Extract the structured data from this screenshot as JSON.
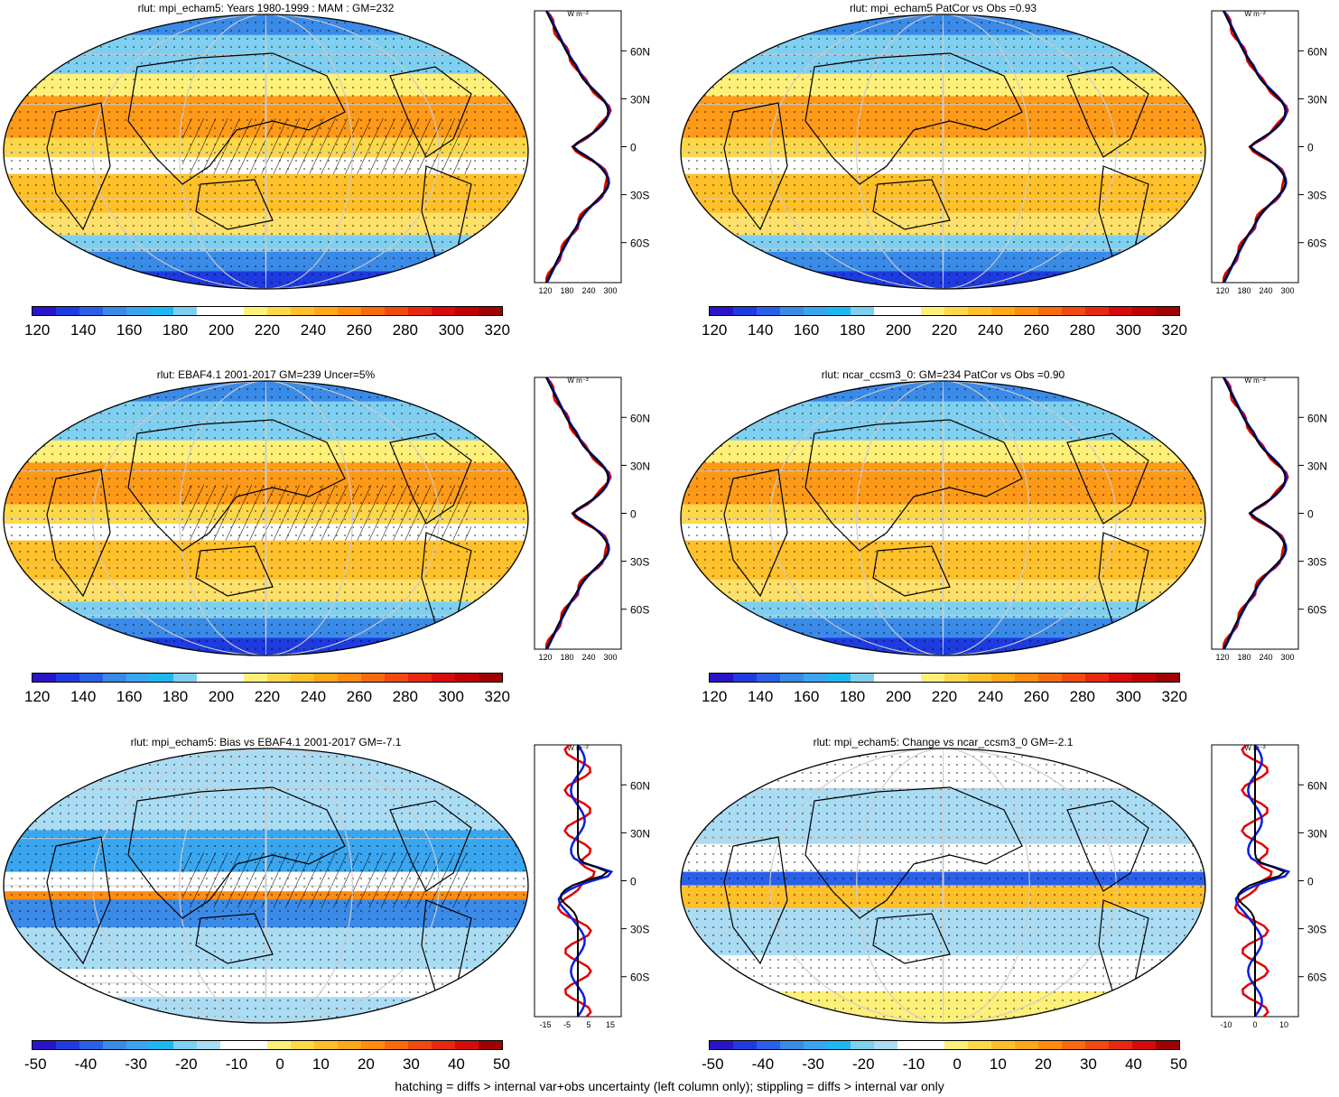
{
  "titles": [
    "rlut: mpi_echam5: Years 1980-1999 : MAM : GM=232",
    "rlut: mpi_echam5 PatCor vs Obs =0.93",
    "rlut: EBAF4.1 2001-2017 GM=239 Uncer=5%",
    "rlut: ncar_ccsm3_0: GM=234 PatCor vs Obs =0.90",
    "rlut: mpi_echam5: Bias vs EBAF4.1 2001-2017 GM=-7.1",
    "rlut: mpi_echam5: Change vs ncar_ccsm3_0 GM=-2.1"
  ],
  "colorbar_abs": {
    "labels": [
      "120",
      "140",
      "160",
      "180",
      "200",
      "220",
      "240",
      "260",
      "280",
      "300",
      "320"
    ],
    "colors": [
      "#2a14c8",
      "#1e3be0",
      "#2a5fe8",
      "#3a8ae8",
      "#3aa6f0",
      "#1eb8f0",
      "#7fcff0",
      "#ffffff",
      "#ffffff",
      "#fff07a",
      "#ffd84a",
      "#ffc02a",
      "#ffa818",
      "#ff8c10",
      "#f86a10",
      "#f04a10",
      "#e82810",
      "#d80a0a",
      "#c00000",
      "#a00000"
    ]
  },
  "colorbar_diff": {
    "labels": [
      "-50",
      "-40",
      "-30",
      "-20",
      "-10",
      "0",
      "10",
      "20",
      "30",
      "40",
      "50"
    ],
    "colors": [
      "#2a14c8",
      "#1e3be0",
      "#2a5fe8",
      "#3a8ae8",
      "#3aa6f0",
      "#1eb8f0",
      "#7fcff0",
      "#aadcf4",
      "#ffffff",
      "#ffffff",
      "#fff07a",
      "#ffd84a",
      "#ffc02a",
      "#ffa818",
      "#ff8c10",
      "#f86a10",
      "#f04a10",
      "#e82810",
      "#d80a0a",
      "#a00000"
    ]
  },
  "profile": {
    "unit": "W m⁻²",
    "lat_labels": [
      "60N",
      "30N",
      "0",
      "30S",
      "60S"
    ],
    "x_ticks_abs": [
      "120",
      "180",
      "240",
      "300"
    ],
    "x_ticks_diff_left": [
      "-15",
      "-5",
      "5",
      "15"
    ],
    "x_ticks_diff_right": [
      "-10",
      "0",
      "10"
    ]
  },
  "footer": "hatching = diffs > internal var+obs uncertainty (left column only); stippling = diffs > internal var only"
}
